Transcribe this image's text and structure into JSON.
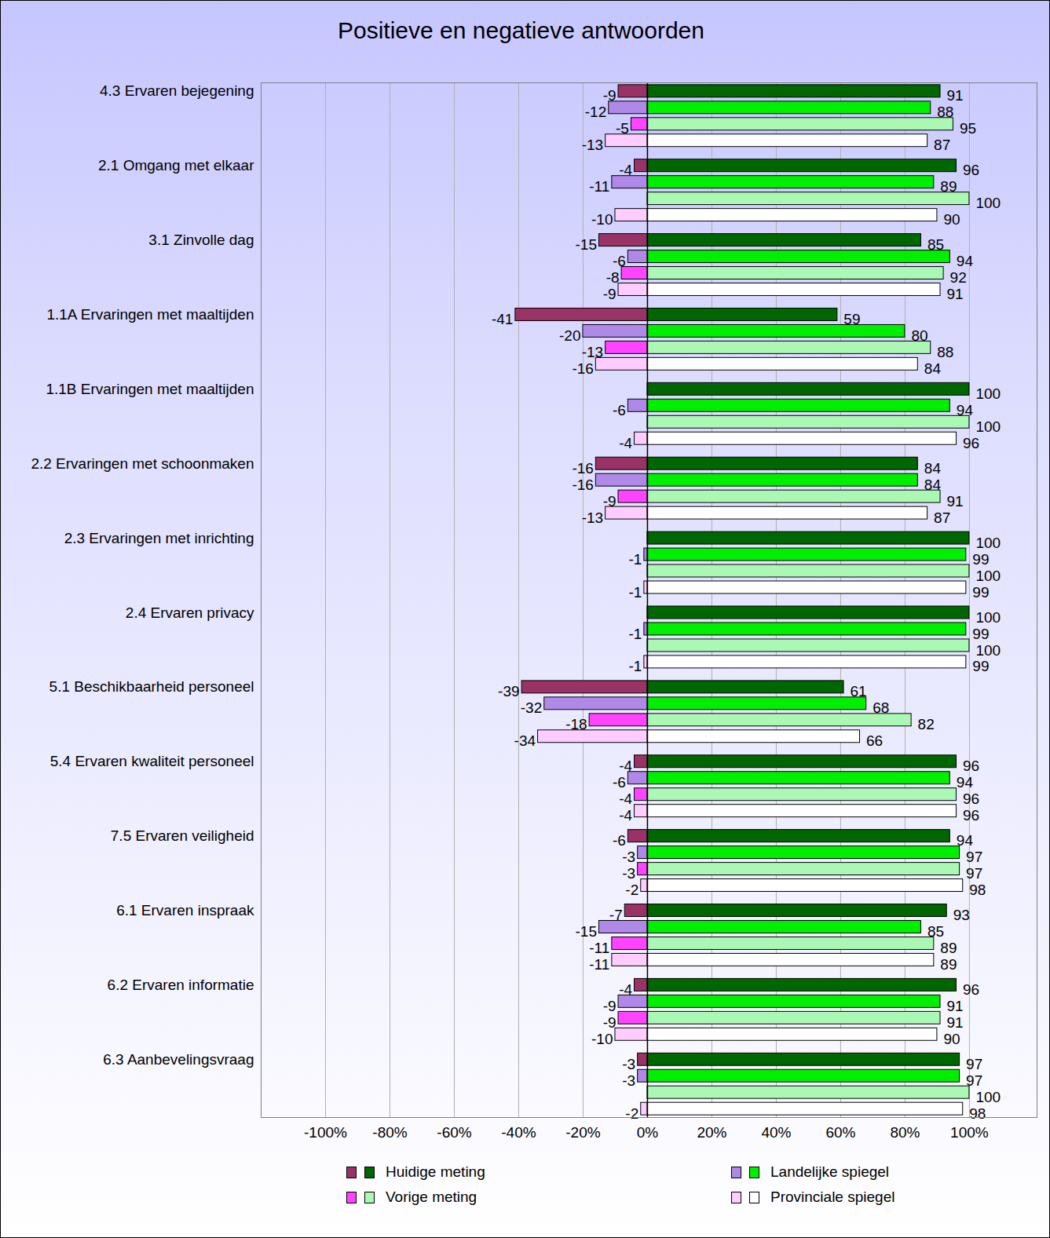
{
  "chart_data": {
    "type": "bar",
    "title": "Positieve en negatieve antwoorden",
    "orientation": "horizontal",
    "data_labels": true,
    "grid": true,
    "legend": "bottom",
    "categories": [
      "4.3 Ervaren bejegening",
      "2.1 Omgang met elkaar",
      "3.1 Zinvolle dag",
      "1.1A Ervaringen met maaltijden",
      "1.1B Ervaringen met maaltijden",
      "2.2 Ervaringen met schoonmaken",
      "2.3 Ervaringen met inrichting",
      "2.4 Ervaren privacy",
      "5.1 Beschikbaarheid personeel",
      "5.4 Ervaren kwaliteit personeel",
      "7.5 Ervaren veiligheid",
      "6.1 Ervaren inspraak",
      "6.2 Ervaren informatie",
      "6.3 Aanbevelingsvraag"
    ],
    "series": [
      {
        "name": "Huidige meting",
        "color": "#006600",
        "negative_color": "#993366",
        "values": [
          91,
          96,
          85,
          59,
          100,
          84,
          100,
          100,
          61,
          96,
          94,
          93,
          96,
          97
        ],
        "negative_values": [
          -9,
          -4,
          -15,
          -41,
          null,
          -16,
          null,
          null,
          -39,
          -4,
          -6,
          -7,
          -4,
          -3
        ]
      },
      {
        "name": "Landelijke spiegel",
        "color": "#00ee00",
        "negative_color": "#b088e8",
        "values": [
          88,
          89,
          94,
          80,
          94,
          84,
          99,
          99,
          68,
          94,
          97,
          85,
          91,
          97
        ],
        "negative_values": [
          -12,
          -11,
          -6,
          -20,
          -6,
          -16,
          -1,
          -1,
          -32,
          -6,
          -3,
          -15,
          -9,
          -3
        ]
      },
      {
        "name": "Vorige meting",
        "color": "#aaf8b4",
        "negative_color": "#ff44ff",
        "values": [
          95,
          100,
          92,
          88,
          100,
          91,
          100,
          100,
          82,
          96,
          97,
          89,
          91,
          100
        ],
        "negative_values": [
          -5,
          null,
          -8,
          -13,
          null,
          -9,
          null,
          null,
          -18,
          -4,
          -3,
          -11,
          -9,
          null
        ]
      },
      {
        "name": "Provinciale spiegel",
        "color": "#ffffff",
        "negative_color": "#ffccff",
        "values": [
          87,
          90,
          91,
          84,
          96,
          87,
          99,
          99,
          66,
          96,
          98,
          89,
          90,
          98
        ],
        "negative_values": [
          -13,
          -10,
          -9,
          -16,
          -4,
          -13,
          -1,
          -1,
          -34,
          -4,
          -2,
          -11,
          -10,
          -2
        ]
      }
    ],
    "xlim": [
      -120,
      121
    ],
    "xticks": [
      {
        "value": -100,
        "label": "-100%"
      },
      {
        "value": -80,
        "label": "-80%"
      },
      {
        "value": -60,
        "label": "-60%"
      },
      {
        "value": -40,
        "label": "-40%"
      },
      {
        "value": -20,
        "label": "-20%"
      },
      {
        "value": 0,
        "label": "0%"
      },
      {
        "value": 20,
        "label": "20%"
      },
      {
        "value": 40,
        "label": "40%"
      },
      {
        "value": 60,
        "label": "60%"
      },
      {
        "value": 80,
        "label": "80%"
      },
      {
        "value": 100,
        "label": "100%"
      }
    ]
  }
}
